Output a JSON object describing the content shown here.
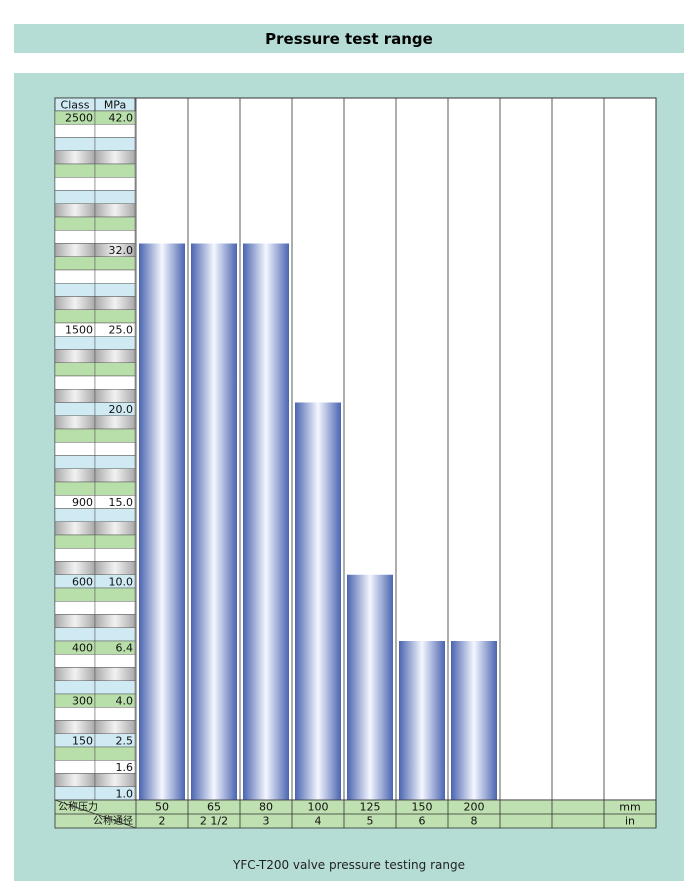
{
  "header": {
    "title": "Pressure test range"
  },
  "caption": "YFC-T200 valve pressure testing range",
  "chart_data": {
    "type": "bar",
    "title": "Pressure test range",
    "axis_headers": {
      "class": "Class",
      "mpa": "MPa"
    },
    "ylim": [
      1.0,
      42.0
    ],
    "ytick_rows": [
      {
        "mpa": "42.0",
        "class": "2500",
        "color": "green"
      },
      {
        "mpa": "",
        "class": "",
        "color": "white"
      },
      {
        "mpa": "",
        "class": "",
        "color": "blue"
      },
      {
        "mpa": "",
        "class": "",
        "color": "gray"
      },
      {
        "mpa": "",
        "class": "",
        "color": "green"
      },
      {
        "mpa": "",
        "class": "",
        "color": "white"
      },
      {
        "mpa": "",
        "class": "",
        "color": "blue"
      },
      {
        "mpa": "",
        "class": "",
        "color": "gray"
      },
      {
        "mpa": "",
        "class": "",
        "color": "green"
      },
      {
        "mpa": "",
        "class": "",
        "color": "white"
      },
      {
        "mpa": "32.0",
        "class": "",
        "color": "gray"
      },
      {
        "mpa": "",
        "class": "",
        "color": "green"
      },
      {
        "mpa": "",
        "class": "",
        "color": "white"
      },
      {
        "mpa": "",
        "class": "",
        "color": "blue"
      },
      {
        "mpa": "",
        "class": "",
        "color": "gray"
      },
      {
        "mpa": "",
        "class": "",
        "color": "green"
      },
      {
        "mpa": "25.0",
        "class": "1500",
        "color": "white"
      },
      {
        "mpa": "",
        "class": "",
        "color": "blue"
      },
      {
        "mpa": "",
        "class": "",
        "color": "gray"
      },
      {
        "mpa": "",
        "class": "",
        "color": "green"
      },
      {
        "mpa": "",
        "class": "",
        "color": "white"
      },
      {
        "mpa": "",
        "class": "",
        "color": "gray"
      },
      {
        "mpa": "20.0",
        "class": "",
        "color": "blue"
      },
      {
        "mpa": "",
        "class": "",
        "color": "gray"
      },
      {
        "mpa": "",
        "class": "",
        "color": "green"
      },
      {
        "mpa": "",
        "class": "",
        "color": "white"
      },
      {
        "mpa": "",
        "class": "",
        "color": "blue"
      },
      {
        "mpa": "",
        "class": "",
        "color": "gray"
      },
      {
        "mpa": "",
        "class": "",
        "color": "green"
      },
      {
        "mpa": "15.0",
        "class": "900",
        "color": "white"
      },
      {
        "mpa": "",
        "class": "",
        "color": "blue"
      },
      {
        "mpa": "",
        "class": "",
        "color": "gray"
      },
      {
        "mpa": "",
        "class": "",
        "color": "green"
      },
      {
        "mpa": "",
        "class": "",
        "color": "white"
      },
      {
        "mpa": "",
        "class": "",
        "color": "gray"
      },
      {
        "mpa": "10.0",
        "class": "600",
        "color": "blue"
      },
      {
        "mpa": "",
        "class": "",
        "color": "green"
      },
      {
        "mpa": "",
        "class": "",
        "color": "white"
      },
      {
        "mpa": "",
        "class": "",
        "color": "gray"
      },
      {
        "mpa": "",
        "class": "",
        "color": "blue"
      },
      {
        "mpa": "6.4",
        "class": "400",
        "color": "green"
      },
      {
        "mpa": "",
        "class": "",
        "color": "white"
      },
      {
        "mpa": "",
        "class": "",
        "color": "gray"
      },
      {
        "mpa": "",
        "class": "",
        "color": "blue"
      },
      {
        "mpa": "4.0",
        "class": "300",
        "color": "green"
      },
      {
        "mpa": "",
        "class": "",
        "color": "white"
      },
      {
        "mpa": "",
        "class": "",
        "color": "gray"
      },
      {
        "mpa": "2.5",
        "class": "150",
        "color": "blue"
      },
      {
        "mpa": "",
        "class": "",
        "color": "green"
      },
      {
        "mpa": "1.6",
        "class": "",
        "color": "white"
      },
      {
        "mpa": "",
        "class": "",
        "color": "gray"
      },
      {
        "mpa": "1.0",
        "class": "",
        "color": "blue"
      }
    ],
    "row_labels": {
      "nominal_pressure": "公称压力",
      "nominal_diameter": "公称通径"
    },
    "categories_mm": [
      "50",
      "65",
      "80",
      "100",
      "125",
      "150",
      "200",
      "",
      "",
      ""
    ],
    "categories_in": [
      "2",
      "2 1/2",
      "3",
      "4",
      "5",
      "6",
      "8",
      "",
      "",
      ""
    ],
    "unit_mm": "mm",
    "unit_in": "in",
    "values_mpa": [
      32.0,
      32.0,
      32.0,
      20.0,
      10.0,
      6.4,
      6.4,
      null,
      null,
      null
    ],
    "grid": true,
    "colors": {
      "panel": "#b5ddd5",
      "bar_dark": "#4a64b0",
      "bar_light": "#f4f7ff",
      "row_green": "#b8deaa",
      "row_blue": "#cfeaf3",
      "row_white": "#ffffff",
      "row_gray_dark": "#a9a9a9",
      "row_gray_light": "#f2f2f2",
      "bottom_row": "#bfe0b0"
    }
  }
}
